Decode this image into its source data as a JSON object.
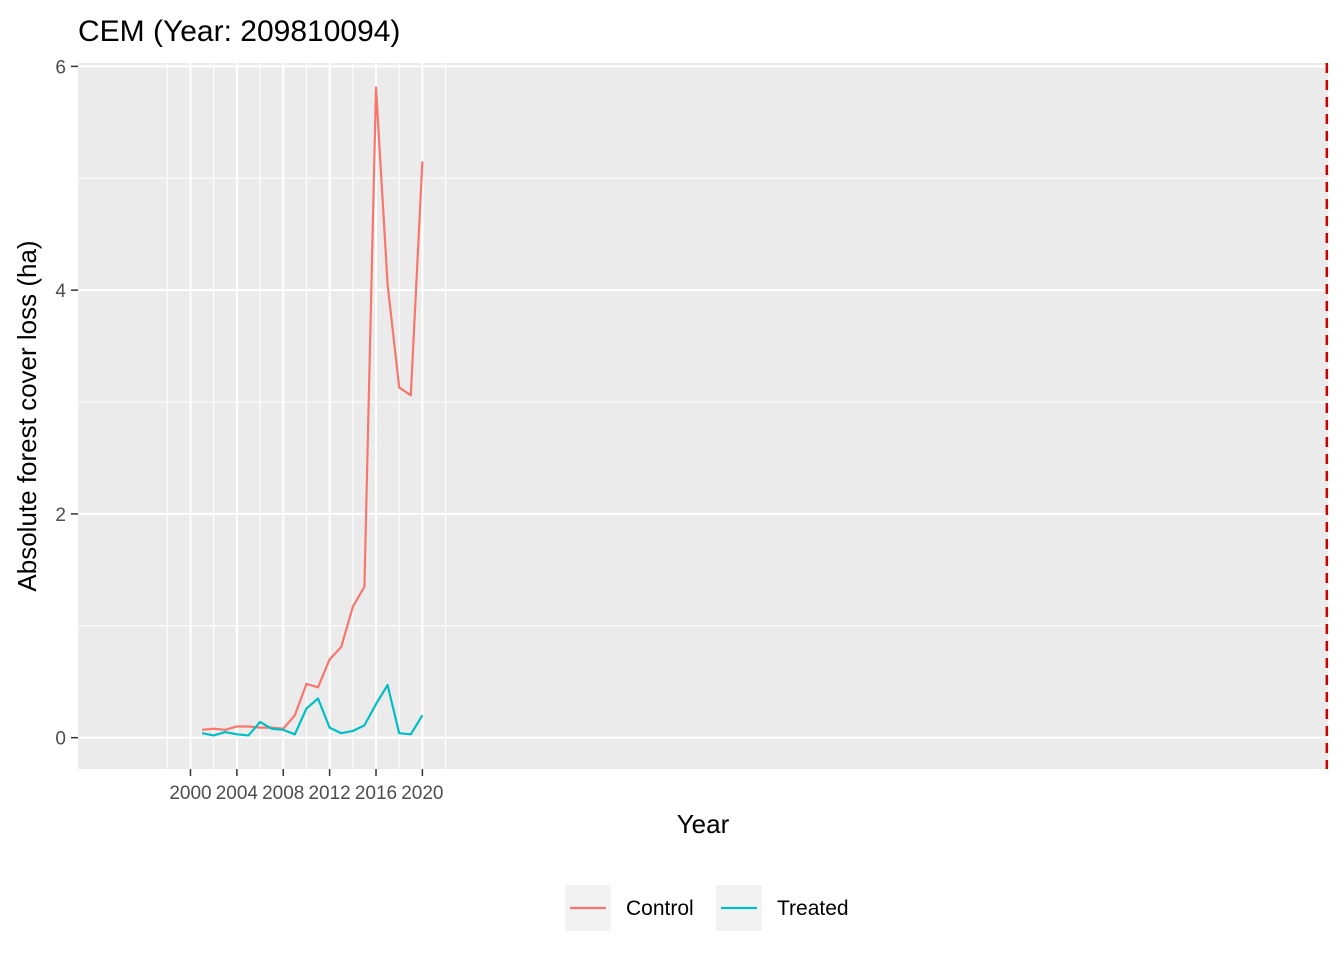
{
  "chart_data": {
    "type": "line",
    "title": "CEM (Year: 209810094)",
    "xlabel": "Year",
    "ylabel": "Absolute forest cover loss (ha)",
    "xlim": [
      1990.3,
      2098.1
    ],
    "ylim": [
      -0.28,
      6.03
    ],
    "x_ticks": [
      2000,
      2004,
      2008,
      2012,
      2016,
      2020
    ],
    "x_tick_labels": [
      "2000",
      "2004",
      "2008",
      "2012",
      "2016",
      "2020"
    ],
    "y_ticks": [
      0,
      2,
      4,
      6
    ],
    "y_tick_labels": [
      "0",
      "2",
      "4",
      "6"
    ],
    "grid": true,
    "legend_position": "bottom",
    "x": [
      2001,
      2002,
      2003,
      2004,
      2005,
      2006,
      2007,
      2008,
      2009,
      2010,
      2011,
      2012,
      2013,
      2014,
      2015,
      2016,
      2017,
      2018,
      2019,
      2020
    ],
    "series": [
      {
        "name": "Control",
        "color": "#F8766D",
        "values": [
          0.07,
          0.08,
          0.07,
          0.1,
          0.1,
          0.09,
          0.09,
          0.08,
          0.2,
          0.48,
          0.45,
          0.7,
          0.81,
          1.17,
          1.35,
          5.81,
          4.05,
          3.13,
          3.06,
          5.15
        ]
      },
      {
        "name": "Treated",
        "color": "#00BFC4",
        "values": [
          0.04,
          0.02,
          0.05,
          0.03,
          0.02,
          0.14,
          0.08,
          0.07,
          0.03,
          0.26,
          0.35,
          0.09,
          0.04,
          0.06,
          0.11,
          0.3,
          0.47,
          0.04,
          0.03,
          0.2
        ]
      }
    ],
    "reference_line": {
      "x": 2098,
      "color": "#CC0000",
      "style": "dashed"
    }
  }
}
